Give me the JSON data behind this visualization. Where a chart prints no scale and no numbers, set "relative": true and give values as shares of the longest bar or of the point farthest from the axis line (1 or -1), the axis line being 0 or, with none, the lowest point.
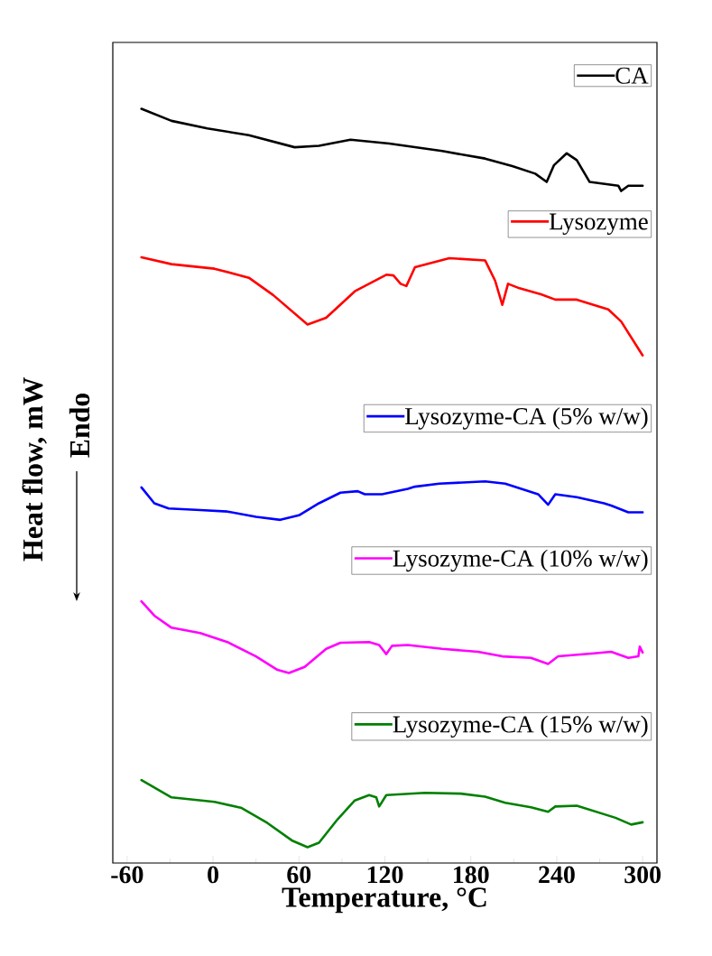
{
  "chart_data": {
    "type": "line",
    "relative": true,
    "xlabel": "Temperature, °C",
    "ylabel": "Heat flow, mW",
    "annotations": [
      "Endo"
    ],
    "xlim": [
      -70,
      310
    ],
    "xticks": [
      -60,
      0,
      60,
      120,
      180,
      240,
      300
    ],
    "legend": "right",
    "marker": "none",
    "line_style": "solid",
    "grid": false,
    "series": [
      {
        "name": "CA",
        "color": "#000000",
        "x": [
          -50,
          -29,
          -4,
          25,
          57,
          74,
          96,
          123,
          160,
          190,
          209,
          225,
          233,
          238,
          247,
          254,
          263,
          283,
          285,
          290,
          300
        ],
        "values": [
          1.0,
          0.984,
          0.974,
          0.965,
          0.949,
          0.951,
          0.959,
          0.954,
          0.944,
          0.934,
          0.924,
          0.914,
          0.903,
          0.925,
          0.941,
          0.932,
          0.903,
          0.898,
          0.891,
          0.898,
          0.898
        ]
      },
      {
        "name": "Lysozyme",
        "color": "#ff0000",
        "x": [
          -50,
          -29,
          1,
          25,
          42,
          66,
          79,
          99,
          121,
          126,
          131,
          135,
          141,
          165,
          190,
          197,
          202,
          206,
          214,
          229,
          239,
          254,
          276,
          285,
          300
        ],
        "values": [
          0.803,
          0.794,
          0.788,
          0.776,
          0.753,
          0.714,
          0.723,
          0.758,
          0.78,
          0.779,
          0.768,
          0.765,
          0.79,
          0.802,
          0.799,
          0.772,
          0.74,
          0.768,
          0.762,
          0.754,
          0.747,
          0.747,
          0.734,
          0.718,
          0.673
        ]
      },
      {
        "name": "Lysozyme-CA (5% w/w)",
        "color": "#0000ff",
        "x": [
          -50,
          -41,
          -31,
          -9,
          10,
          30,
          47,
          60,
          74,
          89,
          101,
          106,
          118,
          136,
          141,
          158,
          190,
          204,
          227,
          234,
          239,
          254,
          273,
          278,
          290,
          300
        ],
        "values": [
          0.498,
          0.477,
          0.47,
          0.468,
          0.466,
          0.459,
          0.455,
          0.461,
          0.477,
          0.491,
          0.493,
          0.489,
          0.489,
          0.496,
          0.499,
          0.503,
          0.506,
          0.503,
          0.489,
          0.475,
          0.489,
          0.485,
          0.477,
          0.474,
          0.465,
          0.465
        ]
      },
      {
        "name": "Lysozyme-CA (10% w/w)",
        "color": "#ff00ff",
        "x": [
          -50,
          -41,
          -29,
          -9,
          10,
          30,
          45,
          53,
          64,
          79,
          89,
          109,
          116,
          121,
          125,
          136,
          160,
          185,
          202,
          222,
          234,
          241,
          266,
          278,
          290,
          297,
          298,
          300
        ],
        "values": [
          0.347,
          0.328,
          0.312,
          0.305,
          0.293,
          0.274,
          0.256,
          0.252,
          0.26,
          0.284,
          0.292,
          0.293,
          0.289,
          0.277,
          0.288,
          0.289,
          0.284,
          0.28,
          0.274,
          0.272,
          0.264,
          0.274,
          0.278,
          0.28,
          0.272,
          0.274,
          0.287,
          0.279
        ]
      },
      {
        "name": "Lysozyme-CA (15% w/w)",
        "color": "#008000",
        "x": [
          -50,
          -29,
          1,
          20,
          38,
          55,
          66,
          74,
          87,
          99,
          109,
          114,
          116,
          121,
          148,
          173,
          190,
          204,
          222,
          234,
          239,
          254,
          281,
          292,
          300
        ],
        "values": [
          0.11,
          0.087,
          0.081,
          0.073,
          0.053,
          0.03,
          0.021,
          0.027,
          0.058,
          0.083,
          0.09,
          0.087,
          0.075,
          0.09,
          0.093,
          0.092,
          0.088,
          0.08,
          0.074,
          0.068,
          0.075,
          0.076,
          0.06,
          0.051,
          0.054
        ]
      }
    ]
  }
}
